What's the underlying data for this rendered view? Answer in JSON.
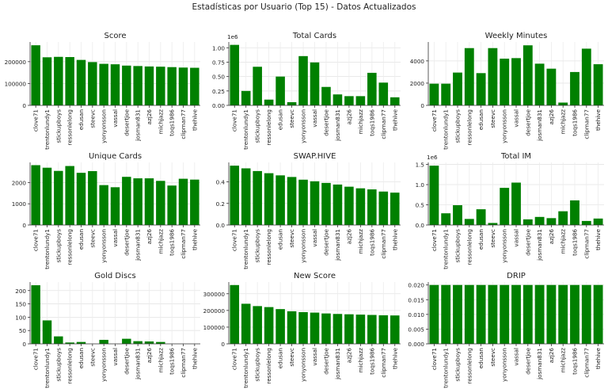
{
  "figure": {
    "title": "Estadísticas por Usuario (Top 15) - Datos Actualizados",
    "bar_color": "#008000",
    "grid": true
  },
  "chart_data": [
    {
      "type": "bar",
      "title": "Score",
      "categories": [
        "clove71",
        "trentonlundy1",
        "stickupboys",
        "ressonlelong",
        "edusan",
        "steevc",
        "yonyonsson",
        "vassal",
        "desertjoe",
        "josman831",
        "azj26",
        "michjazz",
        "toqs1986",
        "clipman77",
        "thehive"
      ],
      "values": [
        275000,
        220000,
        222000,
        221000,
        208000,
        198000,
        190000,
        188000,
        182000,
        180000,
        178000,
        177000,
        175000,
        173000,
        172000
      ],
      "ylim": [
        0,
        290000
      ],
      "yticks": [
        0,
        100000,
        200000
      ],
      "ytick_labels": [
        "0",
        "100000",
        "200000"
      ],
      "offset_label": ""
    },
    {
      "type": "bar",
      "title": "Total Cards",
      "categories": [
        "clove71",
        "trentonlundy1",
        "stickupboys",
        "ressonlelong",
        "edusan",
        "steevc",
        "yonyonsson",
        "vassal",
        "desertjoe",
        "josman831",
        "azj26",
        "michjazz",
        "toqs1986",
        "clipman77",
        "thehive"
      ],
      "values": [
        1050000,
        250000,
        670000,
        100000,
        500000,
        55000,
        855000,
        745000,
        320000,
        190000,
        160000,
        160000,
        565000,
        395000,
        140000
      ],
      "ylim": [
        0,
        1100000
      ],
      "yticks": [
        0,
        250000,
        500000,
        750000,
        1000000
      ],
      "ytick_labels": [
        "0.00",
        "0.25",
        "0.50",
        "0.75",
        "1.00"
      ],
      "offset_label": "1e6"
    },
    {
      "type": "bar",
      "title": "Weekly Minutes",
      "categories": [
        "clove71",
        "trentonlundy1",
        "stickupboys",
        "ressonlelong",
        "edusan",
        "steevc",
        "yonyonsson",
        "vassal",
        "desertjoe",
        "josman831",
        "azj26",
        "michjazz",
        "toqs1986",
        "clipman77",
        "thehive"
      ],
      "values": [
        1950,
        1950,
        2950,
        5150,
        2900,
        5150,
        4200,
        4250,
        5400,
        3750,
        3300,
        250,
        3000,
        5100,
        3700
      ],
      "ylim": [
        0,
        5700
      ],
      "yticks": [
        0,
        2000,
        4000
      ],
      "ytick_labels": [
        "0",
        "2000",
        "4000"
      ],
      "offset_label": ""
    },
    {
      "type": "bar",
      "title": "Unique Cards",
      "categories": [
        "clove71",
        "trentonlundy1",
        "stickupboys",
        "ressonlelong",
        "edusan",
        "steevc",
        "yonyonsson",
        "vassal",
        "desertjoe",
        "josman831",
        "azj26",
        "michjazz",
        "toqs1986",
        "clipman77",
        "thehive"
      ],
      "values": [
        2820,
        2700,
        2550,
        2780,
        2460,
        2540,
        1880,
        1780,
        2270,
        2200,
        2200,
        2080,
        1860,
        2180,
        2140
      ],
      "ylim": [
        0,
        2950
      ],
      "yticks": [
        0,
        1000,
        2000
      ],
      "ytick_labels": [
        "0",
        "1000",
        "2000"
      ],
      "offset_label": ""
    },
    {
      "type": "bar",
      "title": "SWAP.HIVE",
      "categories": [
        "clove71",
        "trentonlundy1",
        "stickupboys",
        "ressonlelong",
        "edusan",
        "steevc",
        "yonyonsson",
        "vassal",
        "desertjoe",
        "josman831",
        "azj26",
        "michjazz",
        "toqs1986",
        "clipman77",
        "thehive"
      ],
      "values": [
        0.55,
        0.525,
        0.5,
        0.48,
        0.46,
        0.445,
        0.42,
        0.405,
        0.39,
        0.375,
        0.355,
        0.34,
        0.33,
        0.31,
        0.3
      ],
      "ylim": [
        0,
        0.58
      ],
      "yticks": [
        0,
        0.2,
        0.4
      ],
      "ytick_labels": [
        "0.0",
        "0.2",
        "0.4"
      ],
      "offset_label": ""
    },
    {
      "type": "bar",
      "title": "Total IM",
      "categories": [
        "clove71",
        "trentonlundy1",
        "stickupboys",
        "ressonlelong",
        "edusan",
        "steevc",
        "yonyonsson",
        "vassal",
        "desertjoe",
        "josman831",
        "azj26",
        "michjazz",
        "toqs1986",
        "clipman77",
        "thehive"
      ],
      "values": [
        1470000,
        290000,
        490000,
        150000,
        390000,
        50000,
        920000,
        1050000,
        140000,
        200000,
        170000,
        340000,
        610000,
        100000,
        160000
      ],
      "ylim": [
        0,
        1550000
      ],
      "yticks": [
        0,
        500000,
        1000000,
        1500000
      ],
      "ytick_labels": [
        "0.0",
        "0.5",
        "1.0",
        "1.5"
      ],
      "offset_label": "1e6"
    },
    {
      "type": "bar",
      "title": "Gold Discs",
      "categories": [
        "clove71",
        "trentonlundy1",
        "stickupboys",
        "ressonlelong",
        "edusan",
        "steevc",
        "yonyonsson",
        "vassal",
        "desertjoe",
        "josman831",
        "azj26",
        "michjazz",
        "toqs1986",
        "clipman77",
        "thehive"
      ],
      "values": [
        220,
        88,
        28,
        5,
        7,
        0,
        15,
        0,
        19,
        10,
        9,
        7,
        0,
        0,
        0
      ],
      "ylim": [
        0,
        232
      ],
      "yticks": [
        0,
        50,
        100,
        150,
        200
      ],
      "ytick_labels": [
        "0",
        "50",
        "100",
        "150",
        "200"
      ],
      "offset_label": ""
    },
    {
      "type": "bar",
      "title": "New Score",
      "categories": [
        "clove71",
        "trentonlundy1",
        "stickupboys",
        "ressonlelong",
        "edusan",
        "steevc",
        "yonyonsson",
        "vassal",
        "desertjoe",
        "josman831",
        "azj26",
        "michjazz",
        "toqs1986",
        "clipman77",
        "thehive"
      ],
      "values": [
        352000,
        240000,
        226000,
        220000,
        208000,
        195000,
        190000,
        187000,
        182000,
        179000,
        177000,
        175000,
        173000,
        171000,
        170000
      ],
      "ylim": [
        0,
        370000
      ],
      "yticks": [
        0,
        100000,
        200000,
        300000
      ],
      "ytick_labels": [
        "0",
        "100000",
        "200000",
        "300000"
      ],
      "offset_label": ""
    },
    {
      "type": "bar",
      "title": "DRIP",
      "categories": [
        "clove71",
        "trentonlundy1",
        "stickupboys",
        "ressonlelong",
        "edusan",
        "steevc",
        "yonyonsson",
        "vassal",
        "desertjoe",
        "josman831",
        "azj26",
        "michjazz",
        "toqs1986",
        "clipman77",
        "thehive"
      ],
      "values": [
        0.02,
        0.02,
        0.02,
        0.02,
        0.02,
        0.02,
        0.02,
        0.02,
        0.02,
        0.02,
        0.02,
        0.02,
        0.02,
        0.02,
        0.02
      ],
      "ylim": [
        0,
        0.021
      ],
      "yticks": [
        0,
        0.005,
        0.01,
        0.015,
        0.02
      ],
      "ytick_labels": [
        "0.000",
        "0.005",
        "0.010",
        "0.015",
        "0.020"
      ],
      "offset_label": ""
    }
  ]
}
